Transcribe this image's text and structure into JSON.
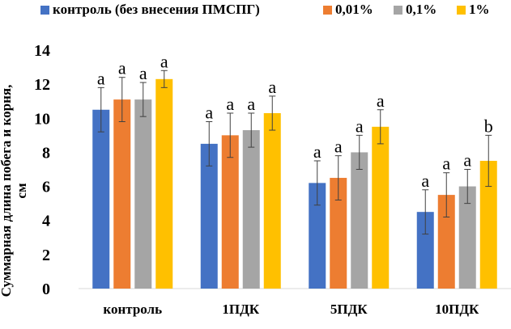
{
  "chart_data": {
    "type": "bar",
    "title": "",
    "xlabel": "",
    "ylabel_line1": "Суммарная длина побега и корня,",
    "ylabel_line2": "см",
    "ylim": [
      0,
      14
    ],
    "yticks": [
      0,
      2,
      4,
      6,
      8,
      10,
      12,
      14
    ],
    "categories": [
      "контроль",
      "1ПДК",
      "5ПДК",
      "10ПДК"
    ],
    "series": [
      {
        "name": "контроль (без внесения ПМСПГ)",
        "color": "#4472C4",
        "values": [
          10.5,
          8.5,
          6.2,
          4.5
        ],
        "errors": [
          1.3,
          1.3,
          1.3,
          1.3
        ],
        "labels": [
          "a",
          "a",
          "a",
          "a"
        ]
      },
      {
        "name": "0,01%",
        "color": "#ED7D31",
        "values": [
          11.1,
          9.0,
          6.5,
          5.5
        ],
        "errors": [
          1.3,
          1.3,
          1.3,
          1.3
        ],
        "labels": [
          "a",
          "a",
          "a",
          "a"
        ]
      },
      {
        "name": "0,1%",
        "color": "#A5A5A5",
        "values": [
          11.1,
          9.3,
          8.0,
          6.0
        ],
        "errors": [
          1.0,
          1.0,
          1.0,
          1.0
        ],
        "labels": [
          "a",
          "a",
          "a",
          "a"
        ]
      },
      {
        "name": "1%",
        "color": "#FFC000",
        "values": [
          12.3,
          10.3,
          9.5,
          7.5
        ],
        "errors": [
          0.5,
          1.0,
          1.0,
          1.5
        ],
        "labels": [
          "a",
          "a",
          "a",
          "b"
        ]
      }
    ],
    "legend_position": "top",
    "grid": false
  }
}
